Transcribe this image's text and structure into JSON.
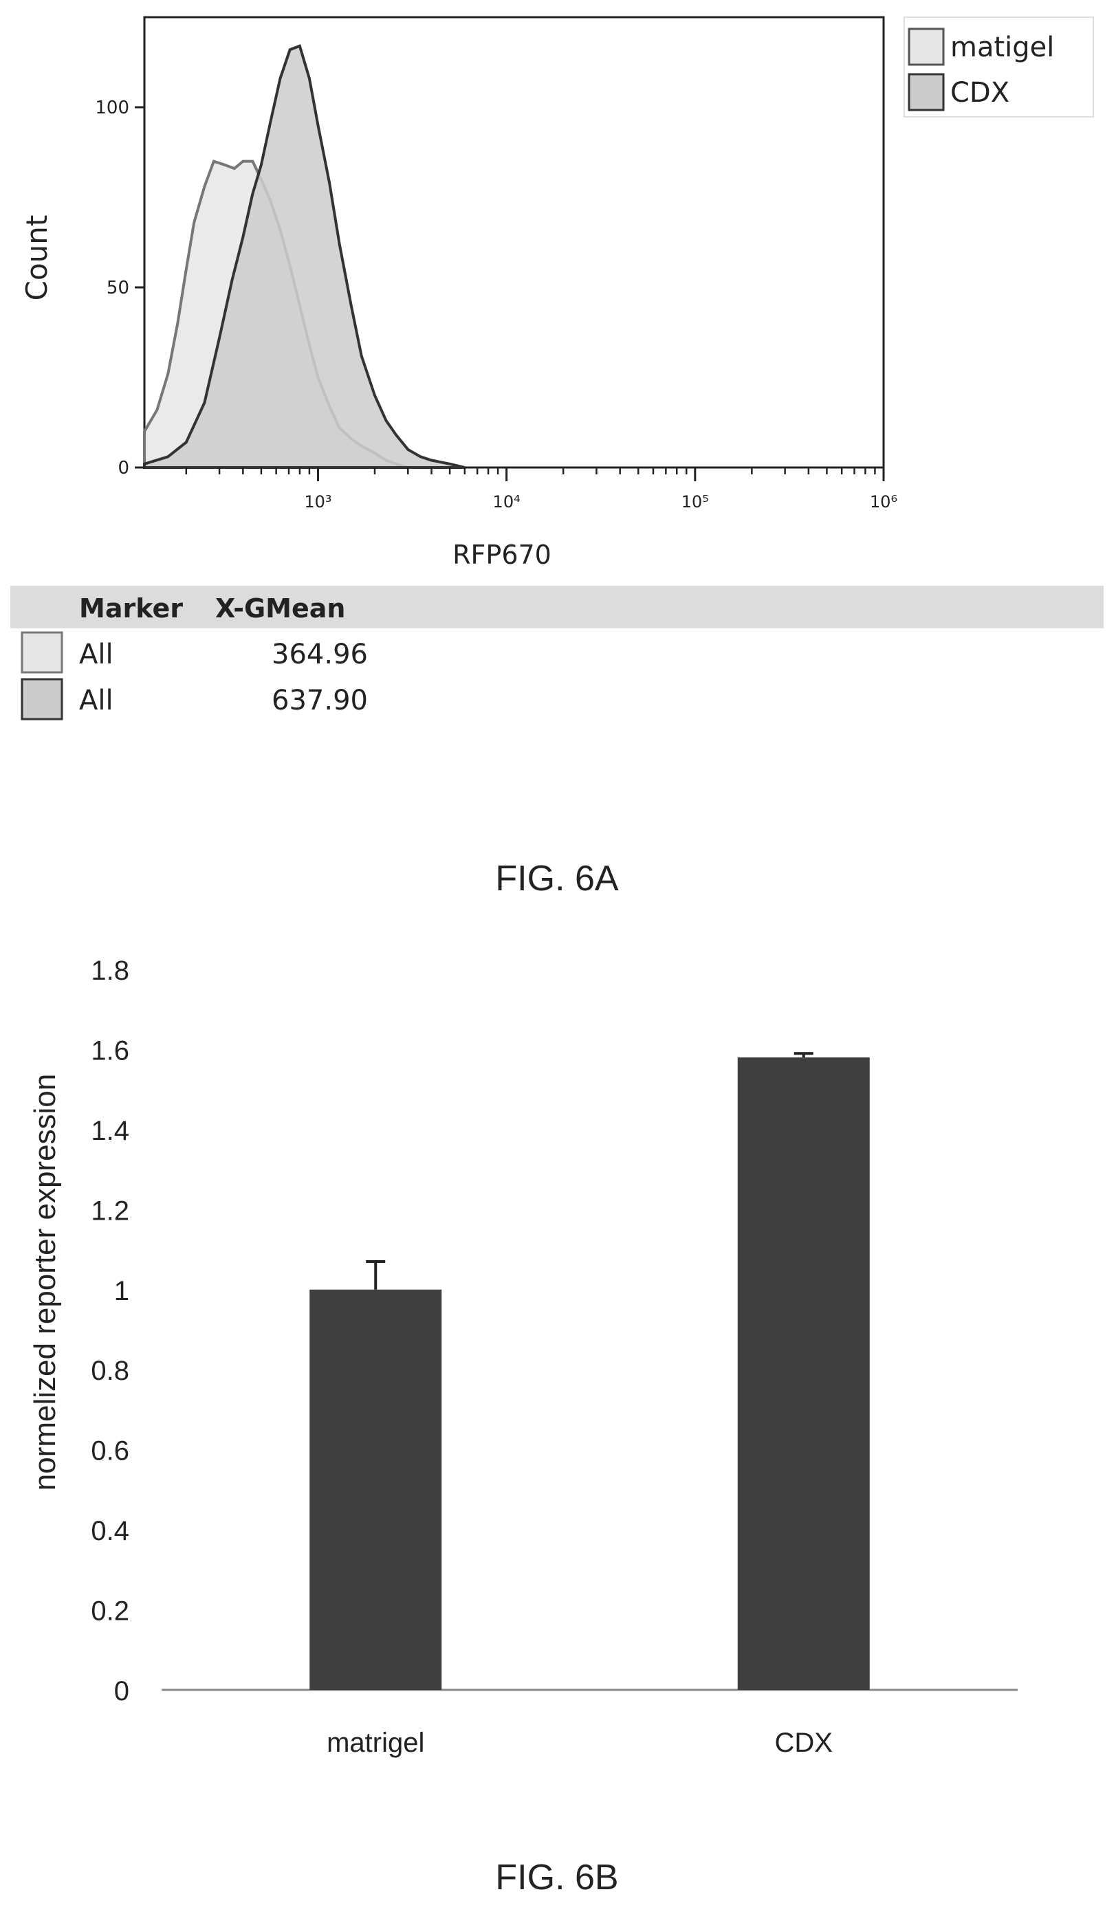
{
  "figure_a": {
    "caption": "FIG. 6A",
    "table": {
      "header_col1": "Marker",
      "header_col2": "X-GMean",
      "rows": [
        {
          "marker": "All",
          "value": "364.96",
          "swatch": "#e6e6e6"
        },
        {
          "marker": "All",
          "value": "637.90",
          "swatch": "#cccccc"
        }
      ]
    }
  },
  "figure_b": {
    "caption": "FIG. 6B"
  },
  "chart_data": [
    {
      "type": "area",
      "xlabel": "RFP670",
      "ylabel": "Count",
      "x_scale": "log",
      "xlim": [
        120,
        1000000
      ],
      "ylim": [
        0,
        125
      ],
      "x_ticks": [
        {
          "value": 1000,
          "label": "10³"
        },
        {
          "value": 10000,
          "label": "10⁴"
        },
        {
          "value": 100000,
          "label": "10⁵"
        },
        {
          "value": 1000000,
          "label": "10⁶"
        }
      ],
      "y_ticks": [
        {
          "value": 0,
          "label": "0"
        },
        {
          "value": 50,
          "label": "50"
        },
        {
          "value": 100,
          "label": "100"
        }
      ],
      "legend_position": "top-right",
      "series": [
        {
          "name": "matigel",
          "color": "#e6e6e6",
          "stroke": "#777777",
          "x": [
            120,
            140,
            160,
            180,
            200,
            220,
            250,
            280,
            320,
            360,
            400,
            450,
            500,
            560,
            630,
            710,
            800,
            900,
            1000,
            1150,
            1300,
            1500,
            1700,
            2000,
            2300,
            2600,
            3000
          ],
          "y": [
            10,
            16,
            26,
            40,
            55,
            68,
            78,
            85,
            84,
            83,
            85,
            85,
            80,
            74,
            66,
            56,
            45,
            34,
            25,
            17,
            11,
            8,
            6,
            4,
            2,
            1,
            0
          ]
        },
        {
          "name": "CDX",
          "color": "#cccccc",
          "stroke": "#333333",
          "x": [
            120,
            160,
            200,
            250,
            300,
            350,
            400,
            450,
            500,
            560,
            630,
            710,
            800,
            900,
            1000,
            1150,
            1300,
            1500,
            1700,
            2000,
            2300,
            2600,
            3000,
            3500,
            4000,
            5000,
            6000
          ],
          "y": [
            1,
            3,
            7,
            18,
            36,
            52,
            64,
            76,
            84,
            96,
            108,
            116,
            117,
            108,
            95,
            79,
            62,
            45,
            31,
            20,
            13,
            9,
            5,
            3,
            2,
            1,
            0
          ]
        }
      ]
    },
    {
      "type": "bar",
      "xlabel": "",
      "ylabel": "normelized reporter expression",
      "categories": [
        "matrigel",
        "CDX"
      ],
      "values": [
        1.0,
        1.58
      ],
      "error": [
        0.07,
        0.01
      ],
      "ylim": [
        0,
        1.8
      ],
      "y_ticks": [
        "0",
        "0.2",
        "0.4",
        "0.6",
        "0.8",
        "1",
        "1.2",
        "1.4",
        "1.6",
        "1.8"
      ],
      "bar_color": "#3f3f3f",
      "grid": false
    }
  ]
}
